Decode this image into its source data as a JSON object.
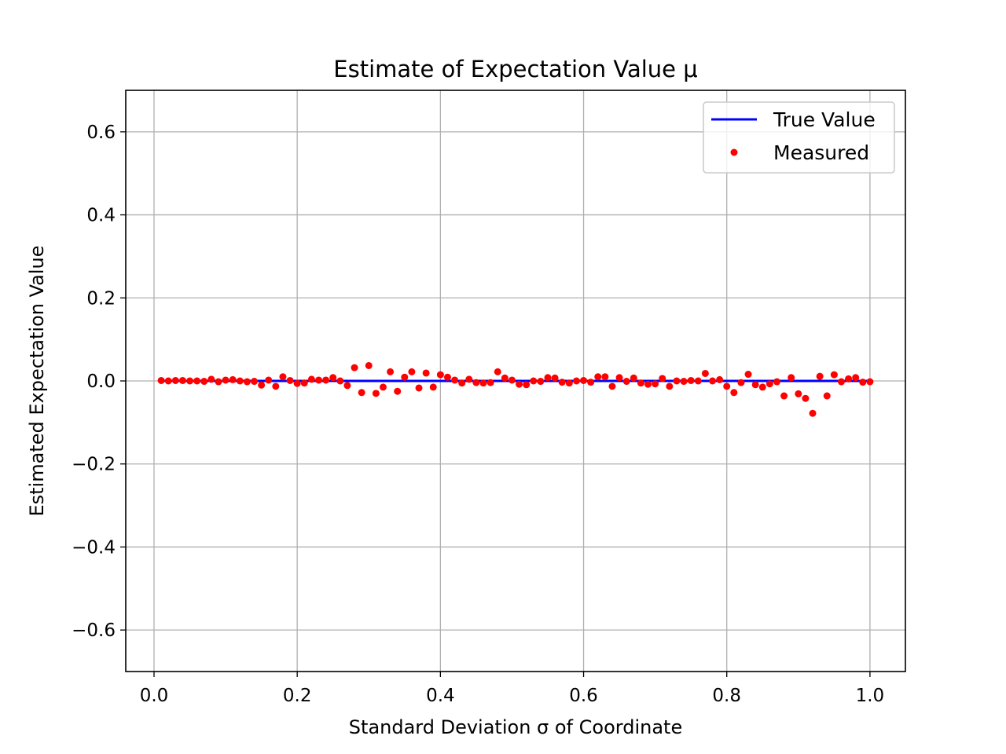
{
  "chart_data": {
    "type": "scatter",
    "title": "Estimate of Expectation Value μ",
    "xlabel": "Standard Deviation σ of Coordinate",
    "ylabel": "Estimated Expectation Value",
    "xlim": [
      -0.0395,
      1.0495
    ],
    "ylim": [
      -0.7,
      0.7
    ],
    "xticks": [
      0.0,
      0.2,
      0.4,
      0.6,
      0.8,
      1.0
    ],
    "xtick_labels": [
      "0.0",
      "0.2",
      "0.4",
      "0.6",
      "0.8",
      "1.0"
    ],
    "yticks": [
      -0.6,
      -0.4,
      -0.2,
      0.0,
      0.2,
      0.4,
      0.6
    ],
    "ytick_labels": [
      "−0.6",
      "−0.4",
      "−0.2",
      "0.0",
      "0.2",
      "0.4",
      "0.6"
    ],
    "grid": true,
    "legend_position": "top-right",
    "series": [
      {
        "name": "True Value",
        "kind": "line",
        "color": "#0000ff",
        "x": [
          0.01,
          1.0
        ],
        "y": [
          0.0,
          0.0
        ]
      },
      {
        "name": "Measured",
        "kind": "scatter",
        "color": "#ff0000",
        "x": [
          0.01,
          0.02,
          0.03,
          0.04,
          0.05,
          0.06,
          0.07,
          0.08,
          0.09,
          0.1,
          0.11,
          0.12,
          0.13,
          0.14,
          0.15,
          0.16,
          0.17,
          0.18,
          0.19,
          0.2,
          0.21,
          0.22,
          0.23,
          0.24,
          0.25,
          0.26,
          0.27,
          0.28,
          0.29,
          0.3,
          0.31,
          0.32,
          0.33,
          0.34,
          0.35,
          0.36,
          0.37,
          0.38,
          0.39,
          0.4,
          0.41,
          0.42,
          0.43,
          0.44,
          0.45,
          0.46,
          0.47,
          0.48,
          0.49,
          0.5,
          0.51,
          0.52,
          0.53,
          0.54,
          0.55,
          0.56,
          0.57,
          0.58,
          0.59,
          0.6,
          0.61,
          0.62,
          0.63,
          0.64,
          0.65,
          0.66,
          0.67,
          0.68,
          0.69,
          0.7,
          0.71,
          0.72,
          0.73,
          0.74,
          0.75,
          0.76,
          0.77,
          0.78,
          0.79,
          0.8,
          0.81,
          0.82,
          0.83,
          0.84,
          0.85,
          0.86,
          0.87,
          0.88,
          0.89,
          0.9,
          0.91,
          0.92,
          0.93,
          0.94,
          0.95,
          0.96,
          0.97,
          0.98,
          0.99,
          1.0
        ],
        "y": [
          0.001,
          0.0,
          0.001,
          0.001,
          0.0,
          0.0,
          -0.001,
          0.004,
          -0.002,
          0.002,
          0.003,
          0.0,
          -0.002,
          -0.001,
          -0.01,
          0.002,
          -0.013,
          0.01,
          0.001,
          -0.006,
          -0.005,
          0.004,
          0.002,
          0.002,
          0.008,
          0.0,
          -0.011,
          0.032,
          -0.028,
          0.037,
          -0.03,
          -0.015,
          0.022,
          -0.025,
          0.009,
          0.022,
          -0.017,
          0.019,
          -0.015,
          0.015,
          0.009,
          0.002,
          -0.005,
          0.004,
          -0.004,
          -0.005,
          -0.004,
          0.022,
          0.007,
          0.002,
          -0.008,
          -0.009,
          0.0,
          -0.001,
          0.008,
          0.007,
          -0.003,
          -0.005,
          0.0,
          0.001,
          -0.003,
          0.01,
          0.01,
          -0.013,
          0.008,
          -0.001,
          0.007,
          -0.005,
          -0.008,
          -0.007,
          0.006,
          -0.013,
          0.0,
          -0.001,
          0.001,
          0.0,
          0.018,
          0.0,
          0.003,
          -0.013,
          -0.028,
          -0.004,
          0.016,
          -0.009,
          -0.015,
          -0.007,
          -0.002,
          -0.036,
          0.008,
          -0.031,
          -0.042,
          -0.078,
          0.011,
          -0.036,
          0.015,
          -0.002,
          0.005,
          0.008,
          -0.003,
          -0.002
        ]
      }
    ]
  }
}
